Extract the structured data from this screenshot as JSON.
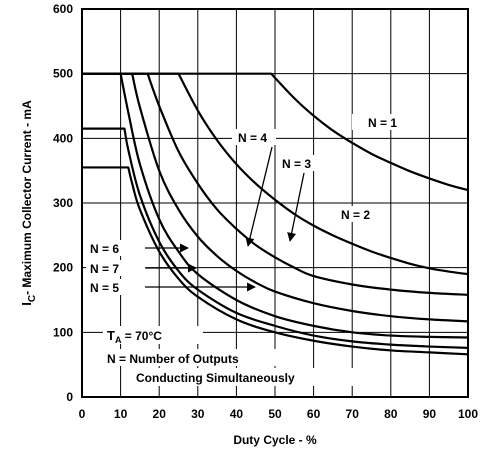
{
  "chart_data": {
    "type": "line",
    "title": "",
    "xlabel": "Duty Cycle -  %",
    "ylabel_main": "C",
    "ylabel_prefix": "I",
    "ylabel_rest": "-  Maximum Collector Current -  mA",
    "xlim": [
      0,
      100
    ],
    "ylim": [
      0,
      600
    ],
    "xticks": [
      "0",
      "10",
      "20",
      "30",
      "40",
      "50",
      "60",
      "70",
      "80",
      "90",
      "100"
    ],
    "yticks": [
      "0",
      "100",
      "200",
      "300",
      "400",
      "500",
      "600"
    ],
    "grid": true,
    "series": [
      {
        "name": "N = 1",
        "x": [
          0,
          49,
          55,
          60,
          65,
          70,
          75,
          80,
          85,
          90,
          95,
          100
        ],
        "y": [
          500,
          500,
          462,
          435,
          412,
          393,
          376,
          362,
          349,
          338,
          328,
          320
        ]
      },
      {
        "name": "N = 2",
        "x": [
          0,
          25,
          30,
          35,
          40,
          45,
          50,
          55,
          60,
          65,
          70,
          75,
          80,
          85,
          90,
          95,
          100
        ],
        "y": [
          500,
          500,
          443,
          397,
          360,
          330,
          305,
          283,
          265,
          250,
          237,
          225,
          215,
          206,
          199,
          194,
          190
        ]
      },
      {
        "name": "N = 3",
        "x": [
          0,
          17,
          20,
          25,
          30,
          35,
          40,
          45,
          50,
          55,
          60,
          70,
          80,
          90,
          100
        ],
        "y": [
          500,
          500,
          450,
          380,
          330,
          290,
          260,
          235,
          216,
          200,
          187,
          174,
          166,
          161,
          158
        ]
      },
      {
        "name": "N = 4",
        "x": [
          0,
          13,
          15,
          20,
          25,
          30,
          35,
          40,
          45,
          50,
          60,
          70,
          80,
          90,
          100
        ],
        "y": [
          500,
          500,
          448,
          350,
          290,
          248,
          218,
          195,
          177,
          163,
          145,
          133,
          125,
          120,
          117
        ]
      },
      {
        "name": "N = 5",
        "x": [
          0,
          10,
          12,
          15,
          20,
          25,
          30,
          40,
          50,
          60,
          70,
          80,
          90,
          100
        ],
        "y": [
          500,
          500,
          440,
          360,
          275,
          225,
          190,
          150,
          125,
          110,
          100,
          95,
          93,
          92
        ]
      },
      {
        "name": "N = 6",
        "x": [
          0,
          11,
          12,
          15,
          20,
          25,
          30,
          40,
          50,
          60,
          70,
          80,
          90,
          100
        ],
        "y": [
          415,
          415,
          382,
          312,
          240,
          195,
          166,
          130,
          110,
          95,
          86,
          81,
          78,
          76
        ]
      },
      {
        "name": "N = 7",
        "x": [
          0,
          12,
          13,
          15,
          20,
          25,
          30,
          40,
          50,
          60,
          70,
          80,
          90,
          100
        ],
        "y": [
          355,
          355,
          330,
          290,
          225,
          183,
          155,
          120,
          100,
          87,
          78,
          72,
          69,
          66
        ]
      }
    ],
    "annotations": {
      "n1": "N = 1",
      "n2": "N = 2",
      "n3": "N = 3",
      "n4": "N = 4",
      "n5": "N = 5",
      "n6": "N = 6",
      "n7": "N = 7",
      "ta_t": "T",
      "ta_sub": "A",
      "ta_rest": " = 70°C",
      "note_line1": "N = Number of Outputs",
      "note_line2": "Conducting Simultaneously"
    }
  }
}
